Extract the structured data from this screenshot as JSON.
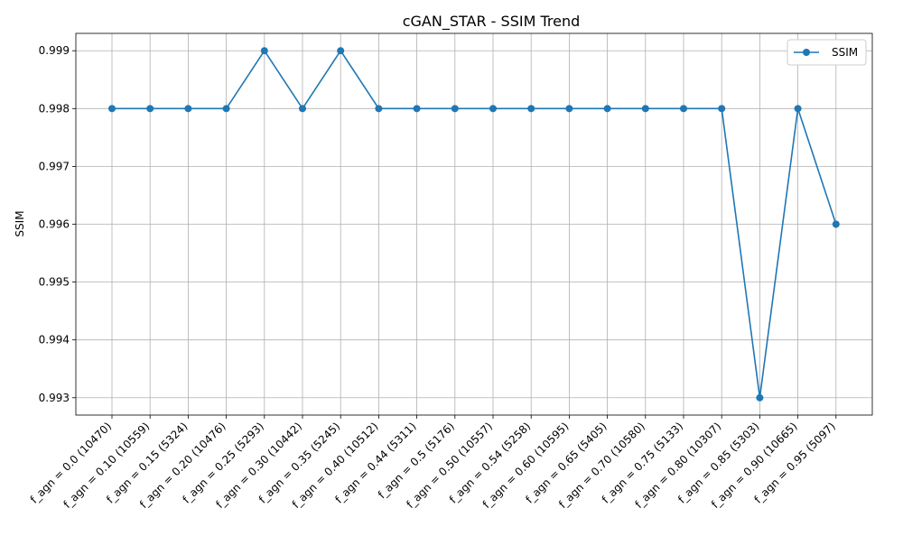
{
  "chart_data": {
    "type": "line",
    "title": "cGAN_STAR - SSIM Trend",
    "xlabel": "",
    "ylabel": "SSIM",
    "categories": [
      "f_agn = 0.0 (10470)",
      "f_agn = 0.10 (10559)",
      "f_agn = 0.15 (5324)",
      "f_agn = 0.20 (10476)",
      "f_agn = 0.25 (5293)",
      "f_agn = 0.30 (10442)",
      "f_agn = 0.35 (5245)",
      "f_agn = 0.40 (10512)",
      "f_agn = 0.44 (5311)",
      "f_agn = 0.5 (5176)",
      "f_agn = 0.50 (10557)",
      "f_agn = 0.54 (5258)",
      "f_agn = 0.60 (10595)",
      "f_agn = 0.65 (5405)",
      "f_agn = 0.70 (10580)",
      "f_agn = 0.75 (5133)",
      "f_agn = 0.80 (10307)",
      "f_agn = 0.85 (5303)",
      "f_agn = 0.90 (10665)",
      "f_agn = 0.95 (5097)"
    ],
    "series": [
      {
        "name": "SSIM",
        "color": "#1f77b4",
        "values": [
          0.998,
          0.998,
          0.998,
          0.998,
          0.999,
          0.998,
          0.999,
          0.998,
          0.998,
          0.998,
          0.998,
          0.998,
          0.998,
          0.998,
          0.998,
          0.998,
          0.998,
          0.993,
          0.998,
          0.996
        ]
      }
    ],
    "ylim": [
      0.9927,
      0.9993
    ],
    "yticks": [
      "0.993",
      "0.994",
      "0.995",
      "0.996",
      "0.997",
      "0.998",
      "0.999"
    ],
    "grid": true,
    "legend": "top-right"
  }
}
